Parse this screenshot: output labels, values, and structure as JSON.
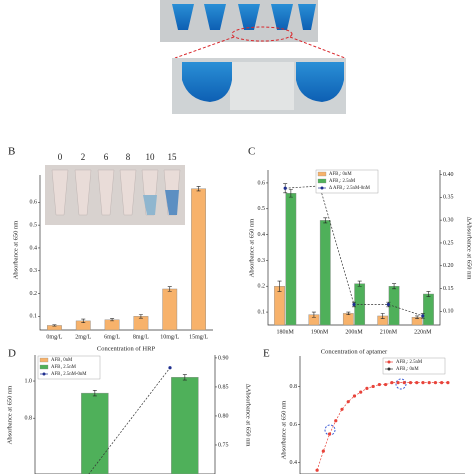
{
  "chart_data": [
    {
      "type": "bar",
      "panel": "B",
      "x_label": "Concentration of HRP",
      "y_label": "Absorbance at 650 nm",
      "photo_labels": [
        "0",
        "2",
        "6",
        "8",
        "10",
        "15"
      ],
      "categories": [
        "0mg/L",
        "2mg/L",
        "6mg/L",
        "8mg/L",
        "10mg/L",
        "15mg/L"
      ],
      "series": [
        {
          "name": null,
          "color": "#f7b26b",
          "values": [
            0.06,
            0.08,
            0.085,
            0.1,
            0.22,
            0.66
          ],
          "errors": [
            0.003,
            0.008,
            0.005,
            0.008,
            0.01,
            0.01
          ]
        }
      ],
      "ylim": [
        0.04,
        0.72
      ],
      "yticks": [
        0.1,
        0.2,
        0.3,
        0.4,
        0.5,
        0.6
      ]
    },
    {
      "type": "bar",
      "panel": "C",
      "x_label": "Concentration of aptamer",
      "y_label": "Absorbance at 650 nm",
      "y2_label": "ΔAbsorbance at 650 nm",
      "categories": [
        "180nM",
        "190nM",
        "200nM",
        "210nM",
        "220nM"
      ],
      "series": [
        {
          "name": "AFB₁: 0nM",
          "color": "#f7b26b",
          "values": [
            0.2,
            0.09,
            0.095,
            0.085,
            0.08
          ],
          "errors": [
            0.02,
            0.01,
            0.005,
            0.01,
            0.005
          ]
        },
        {
          "name": "AFB₁: 2.5nM",
          "color": "#4fb05a",
          "values": [
            0.56,
            0.455,
            0.21,
            0.2,
            0.17
          ],
          "errors": [
            0.015,
            0.01,
            0.01,
            0.01,
            0.01
          ]
        },
        {
          "name": "Δ AFB₁: 2.5nM-0nM",
          "color": "#1f2f8f",
          "axis": "y2",
          "values": [
            0.37,
            0.375,
            0.115,
            0.115,
            0.09
          ],
          "errors": [
            0.01,
            0.01,
            0.005,
            0.005,
            0.005
          ]
        }
      ],
      "ylim": [
        0.05,
        0.65
      ],
      "yticks": [
        0.1,
        0.2,
        0.3,
        0.4,
        0.5,
        0.6
      ],
      "y2lim": [
        0.07,
        0.41
      ],
      "y2ticks": [
        {
          "value": 0.1,
          "label": "0.10"
        },
        {
          "value": 0.15,
          "label": "0.15"
        },
        {
          "value": 0.2,
          "label": "0.20"
        },
        {
          "value": 0.25,
          "label": "0.25"
        },
        {
          "value": 0.3,
          "label": "0.30"
        },
        {
          "value": 0.35,
          "label": "0.35"
        },
        {
          "value": 0.4,
          "label": "0.40"
        }
      ]
    },
    {
      "type": "bar",
      "panel": "D",
      "y_label": "Absorbance at 650 nm",
      "y2_label": "ΔAbsorbance at 650 nm",
      "categories": [
        null,
        null
      ],
      "series": [
        {
          "name": "AFB₁ 0nM",
          "color": "#f7b26b",
          "values": [
            null,
            null
          ]
        },
        {
          "name": "AFB₁ 2.5nM",
          "color": "#4fb05a",
          "values": [
            0.935,
            1.02
          ],
          "errors": [
            0.015,
            0.015
          ]
        },
        {
          "name": "AFB₁ 2.5nM-0nM",
          "color": "#1f2f8f",
          "axis": "y2",
          "values": [
            0.68,
            0.883
          ]
        }
      ],
      "ylim": [
        0.5,
        1.14
      ],
      "yticks": [
        0.8,
        {
          "value": 1.0,
          "label": "1.0"
        }
      ],
      "y2lim": [
        0.7,
        0.905
      ],
      "y2ticks": [
        {
          "value": 0.75,
          "label": "0.75"
        },
        {
          "value": 0.8,
          "label": "0.80"
        },
        {
          "value": 0.85,
          "label": "0.85"
        },
        {
          "value": 0.9,
          "label": "0.90"
        }
      ]
    },
    {
      "type": "line",
      "panel": "E",
      "y_label": "Absorbance at 650 nm",
      "categories": [
        null,
        null,
        null,
        null,
        null,
        null,
        null,
        null,
        null,
        null,
        null,
        null,
        null,
        null,
        null,
        null,
        null,
        null,
        null,
        null,
        null,
        null
      ],
      "series": [
        {
          "name": "AFB₁: 2.5nM",
          "color": "#e8433a",
          "values": [
            0.36,
            0.46,
            0.55,
            0.62,
            0.68,
            0.72,
            0.75,
            0.77,
            0.79,
            0.8,
            0.81,
            0.81,
            0.82,
            0.82,
            0.82,
            0.82,
            0.82,
            0.82,
            0.82,
            0.82,
            0.82,
            0.82
          ]
        },
        {
          "name": "AFB₁: 0nM",
          "color": "#333333",
          "values": [
            null,
            null,
            null,
            null,
            null,
            null,
            null,
            null,
            null,
            null,
            null,
            null,
            null,
            null,
            null,
            null,
            null,
            null,
            null,
            null,
            null,
            null
          ]
        }
      ],
      "ylim": [
        0.34,
        0.96
      ],
      "yticks": [
        0.4,
        0.6,
        0.8
      ]
    }
  ]
}
